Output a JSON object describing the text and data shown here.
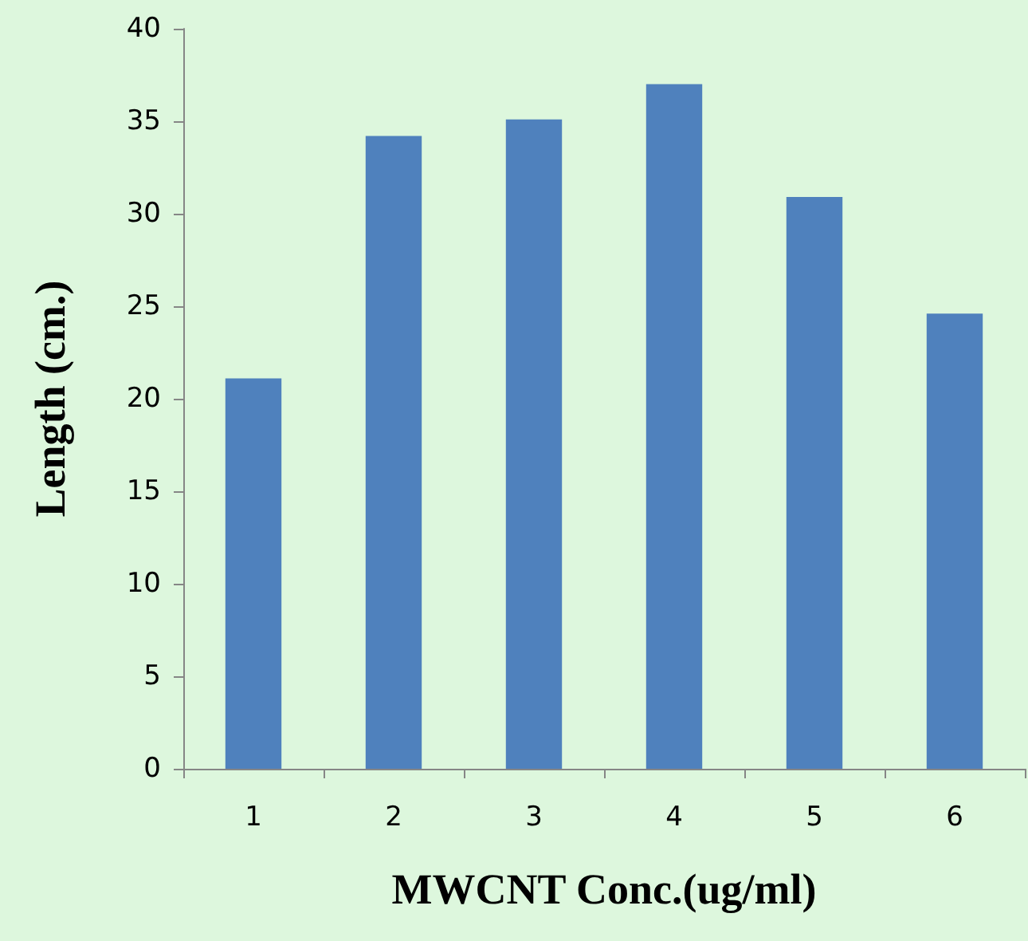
{
  "chart_data": {
    "type": "bar",
    "xlabel": "MWCNT Conc.(ug/ml)",
    "ylabel": "Length (cm.)",
    "categories": [
      "1",
      "2",
      "3",
      "4",
      "5",
      "6"
    ],
    "values": [
      21.1,
      34.2,
      35.1,
      37.0,
      30.9,
      24.6
    ],
    "color": "#4f81bd",
    "ylim": [
      0,
      40
    ],
    "yticks": [
      0,
      5,
      10,
      15,
      20,
      25,
      30,
      35,
      40
    ],
    "grid": false
  }
}
